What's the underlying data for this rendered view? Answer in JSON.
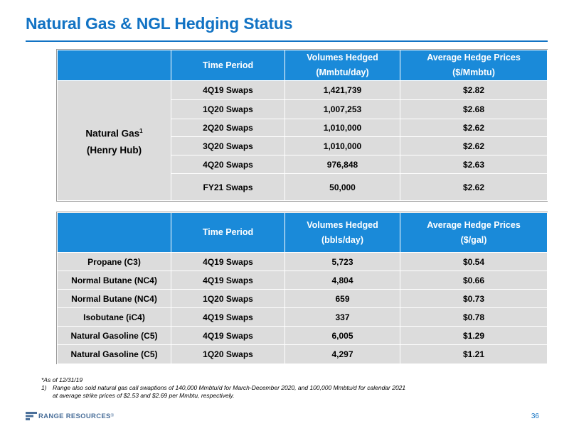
{
  "title": "Natural Gas & NGL Hedging Status",
  "gas_table": {
    "headers": {
      "blank": "",
      "col1": "Time Period",
      "col2_l1": "Volumes Hedged",
      "col2_l2": "(Mmbtu/day)",
      "col3_l1": "Average Hedge Prices",
      "col3_l2": "($/Mmbtu)"
    },
    "group_label_l1": "Natural Gas",
    "group_label_sup": "1",
    "group_label_l2": "(Henry Hub)",
    "rows": [
      {
        "period": "4Q19 Swaps",
        "volume": "1,421,739",
        "price": "$2.82"
      },
      {
        "period": "1Q20 Swaps",
        "volume": "1,007,253",
        "price": "$2.68"
      },
      {
        "period": "2Q20 Swaps",
        "volume": "1,010,000",
        "price": "$2.62"
      },
      {
        "period": "3Q20 Swaps",
        "volume": "1,010,000",
        "price": "$2.62"
      },
      {
        "period": "4Q20 Swaps",
        "volume": "976,848",
        "price": "$2.63"
      },
      {
        "period": "FY21 Swaps",
        "volume": "50,000",
        "price": "$2.62"
      }
    ]
  },
  "ngl_table": {
    "headers": {
      "blank": "",
      "col1": "Time Period",
      "col2_l1": "Volumes Hedged",
      "col2_l2": "(bbls/day)",
      "col3_l1": "Average Hedge Prices",
      "col3_l2": "($/gal)"
    },
    "rows": [
      {
        "product": "Propane (C3)",
        "period": "4Q19 Swaps",
        "volume": "5,723",
        "price": "$0.54"
      },
      {
        "product": "Normal Butane (NC4)",
        "period": "4Q19 Swaps",
        "volume": "4,804",
        "price": "$0.66"
      },
      {
        "product": "Normal Butane (NC4)",
        "period": "1Q20 Swaps",
        "volume": "659",
        "price": "$0.73"
      },
      {
        "product": "Isobutane (iC4)",
        "period": "4Q19 Swaps",
        "volume": "337",
        "price": "$0.78"
      },
      {
        "product": "Natural Gasoline (C5)",
        "period": "4Q19 Swaps",
        "volume": "6,005",
        "price": "$1.29"
      },
      {
        "product": "Natural Gasoline (C5)",
        "period": "1Q20 Swaps",
        "volume": "4,297",
        "price": "$1.21"
      }
    ]
  },
  "footnotes": {
    "as_of": "*As of 12/31/19",
    "note1_num": "1)",
    "note1_text": "Range also sold natural gas call swaptions of 140,000 Mmbtu/d for March-December 2020, and 100,000 Mmbtu/d for calendar 2021 at average strike prices of $2.53 and $2.69 per Mmbtu, respectively."
  },
  "logo_text": "RANGE RESOURCES",
  "logo_mark": "®",
  "page_number": "36",
  "colors": {
    "accent": "#1273c4",
    "header_fill": "#1a8ad9",
    "cell_fill": "#dcdcdc"
  }
}
